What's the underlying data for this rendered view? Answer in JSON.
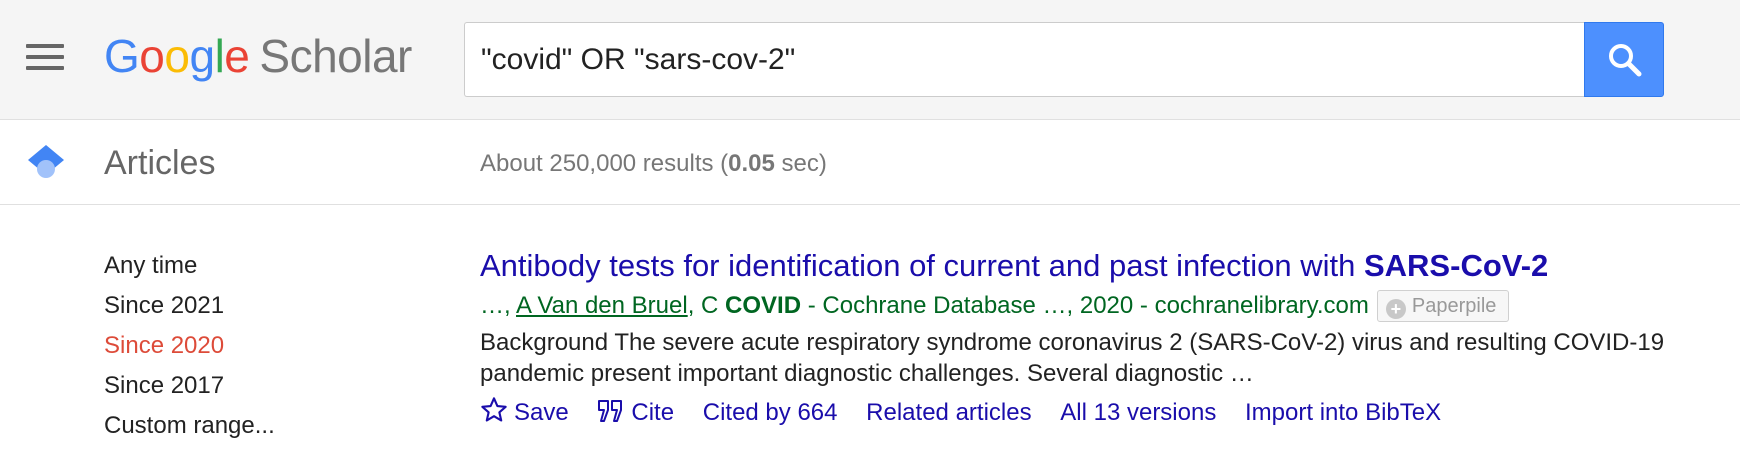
{
  "header": {
    "logo": {
      "letters": [
        "G",
        "o",
        "o",
        "g",
        "l",
        "e"
      ],
      "product": "Scholar"
    },
    "search": {
      "value": "\"covid\" OR \"sars-cov-2\"",
      "button_icon": "search-icon"
    },
    "menu_icon": "hamburger-menu-icon"
  },
  "subheader": {
    "section_title": "Articles",
    "results_prefix": "About 250,000 results (",
    "results_time": "0.05",
    "results_suffix": " sec)"
  },
  "filters": {
    "items": [
      "Any time",
      "Since 2021",
      "Since 2020",
      "Since 2017",
      "Custom range..."
    ],
    "active": "Since 2020"
  },
  "result": {
    "title_plain": "Antibody tests for identification of current and past infection with ",
    "title_bold": "SARS",
    "title_tail": "-CoV-2",
    "byline_prefix": "…, ",
    "byline_author1": "A Van den Bruel",
    "byline_mid": ", C ",
    "byline_bold": "COVID",
    "byline_rest": " - Cochrane Database …, 2020 - cochranelibrary.com",
    "paperpile_label": "Paperpile",
    "snippet": "Background The severe acute respiratory syndrome coronavirus 2 (SARS-CoV-2) virus and resulting COVID-19 pandemic present important diagnostic challenges. Several diagnostic …",
    "actions": {
      "save": "Save",
      "cite": "Cite",
      "cited_by": "Cited by 664",
      "related": "Related articles",
      "versions": "All 13 versions",
      "import": "Import into BibTeX"
    }
  },
  "colors": {
    "link": "#1a0dab",
    "byline": "#006621",
    "active_filter": "#dd4b39",
    "search_button": "#4d90fe"
  }
}
